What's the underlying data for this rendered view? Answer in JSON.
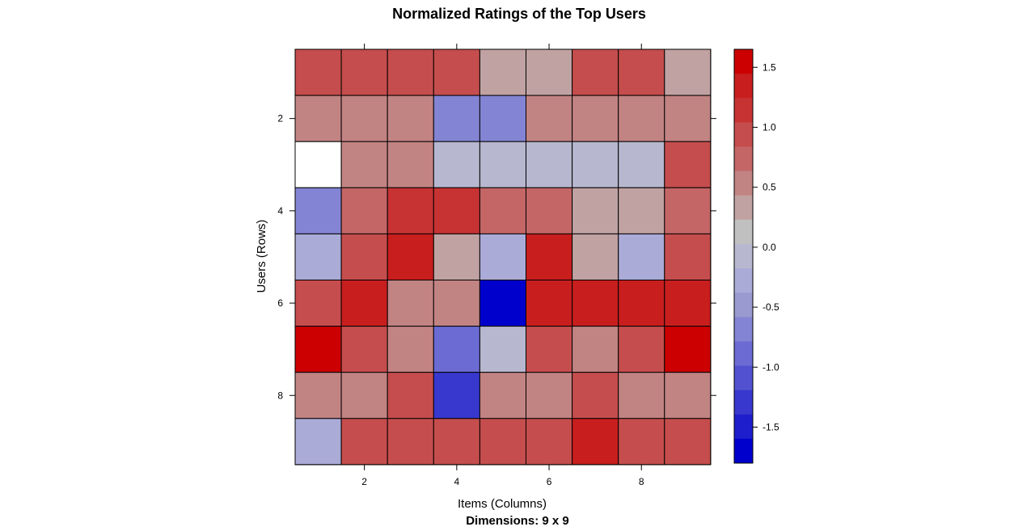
{
  "chart_data": {
    "type": "heatmap",
    "title": "Normalized Ratings of the Top Users",
    "subtitle": "Dimensions: 9 x 9",
    "xlabel": "Items (Columns)",
    "ylabel": "Users (Rows)",
    "x_ticks": [
      "2",
      "4",
      "6",
      "8"
    ],
    "y_ticks": [
      "2",
      "4",
      "6",
      "8"
    ],
    "values": [
      [
        0.95,
        0.95,
        0.95,
        0.95,
        0.3,
        0.3,
        0.95,
        0.95,
        0.3
      ],
      [
        0.6,
        0.6,
        0.6,
        -0.6,
        -0.6,
        0.6,
        0.6,
        0.6,
        0.6
      ],
      [
        null,
        0.6,
        0.6,
        0.0,
        0.0,
        0.0,
        0.0,
        0.0,
        0.95
      ],
      [
        -0.6,
        0.8,
        1.2,
        1.2,
        0.8,
        0.8,
        0.3,
        0.3,
        0.8
      ],
      [
        -0.3,
        0.95,
        1.35,
        0.3,
        -0.3,
        1.35,
        0.3,
        -0.3,
        0.95
      ],
      [
        0.95,
        1.35,
        0.6,
        0.6,
        -1.8,
        1.35,
        1.35,
        1.35,
        1.35
      ],
      [
        1.6,
        0.95,
        0.6,
        -0.8,
        0.0,
        0.95,
        0.6,
        0.95,
        1.6
      ],
      [
        0.6,
        0.6,
        0.95,
        -1.2,
        0.6,
        0.6,
        0.95,
        0.6,
        0.6
      ],
      [
        -0.3,
        0.95,
        0.95,
        0.95,
        0.95,
        0.95,
        1.35,
        0.95,
        0.95
      ]
    ],
    "colorbar": {
      "min": -1.8,
      "max": 1.65,
      "ticks": [
        1.5,
        1.0,
        0.5,
        0.0,
        -0.5,
        -1.0,
        -1.5
      ],
      "tick_labels": [
        "1.5",
        "1.0",
        "0.5",
        "0.0",
        "-0.5",
        "-1.0",
        "-1.5"
      ],
      "colors_high_to_low": [
        "#cc0000",
        "#c81e1e",
        "#c73232",
        "#c64d4d",
        "#c46666",
        "#c28383",
        "#c1a2a2",
        "#c0c0c0",
        "#b7b7cf",
        "#ababd8",
        "#9a9ad0",
        "#8484d4",
        "#6b6bd3",
        "#5252d0",
        "#3838cf",
        "#1e1ecc",
        "#0000cc"
      ]
    },
    "missing_color": "#ffffff",
    "grid": true
  }
}
